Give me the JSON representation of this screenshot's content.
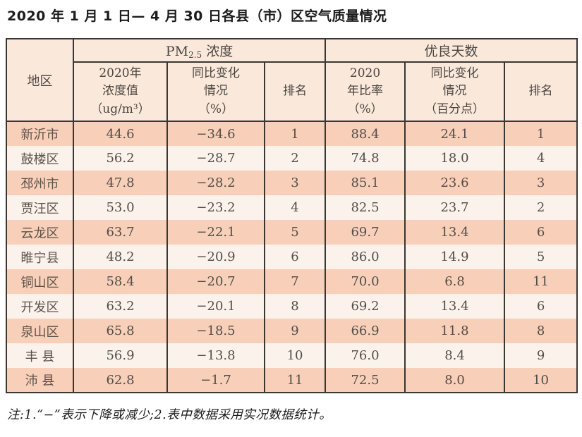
{
  "page": {
    "title": "2020 年 1 月 1 日— 4 月 30 日各县（市）区空气质量情况",
    "footnote": "注:1.“−”表示下降或减少;2.表中数据采用实况数据统计。"
  },
  "colors": {
    "header_bg": "#fae8db",
    "row_odd_bg": "#f8cfb8",
    "row_even_bg": "#fcf2ec",
    "border": "#3a3733"
  },
  "table": {
    "header": {
      "region": "地区",
      "group_pm25": {
        "prefix": "PM",
        "sub": "2.5",
        "suffix": " 浓度"
      },
      "group_good_days": "优良天数",
      "pm25_value": "2020年\n浓度值\n（ug/m³）",
      "pm25_change": "同比变化\n情况\n（%）",
      "pm25_rank": "排名",
      "good_ratio": "2020\n年比率\n（%）",
      "good_change": "同比变化\n情况\n（百分点）",
      "good_rank": "排名"
    },
    "rows": [
      {
        "region": "新沂市",
        "pm25_value": "44.6",
        "pm25_change": "−34.6",
        "pm25_rank": "1",
        "good_ratio": "88.4",
        "good_change": "24.1",
        "good_rank": "1"
      },
      {
        "region": "鼓楼区",
        "pm25_value": "56.2",
        "pm25_change": "−28.7",
        "pm25_rank": "2",
        "good_ratio": "74.8",
        "good_change": "18.0",
        "good_rank": "4"
      },
      {
        "region": "邳州市",
        "pm25_value": "47.8",
        "pm25_change": "−28.2",
        "pm25_rank": "3",
        "good_ratio": "85.1",
        "good_change": "23.6",
        "good_rank": "3"
      },
      {
        "region": "贾汪区",
        "pm25_value": "53.0",
        "pm25_change": "−23.2",
        "pm25_rank": "4",
        "good_ratio": "82.5",
        "good_change": "23.7",
        "good_rank": "2"
      },
      {
        "region": "云龙区",
        "pm25_value": "63.7",
        "pm25_change": "−22.1",
        "pm25_rank": "5",
        "good_ratio": "69.7",
        "good_change": "13.4",
        "good_rank": "6"
      },
      {
        "region": "睢宁县",
        "pm25_value": "48.2",
        "pm25_change": "−20.9",
        "pm25_rank": "6",
        "good_ratio": "86.0",
        "good_change": "14.9",
        "good_rank": "5"
      },
      {
        "region": "铜山区",
        "pm25_value": "58.4",
        "pm25_change": "−20.7",
        "pm25_rank": "7",
        "good_ratio": "70.0",
        "good_change": "6.8",
        "good_rank": "11"
      },
      {
        "region": "开发区",
        "pm25_value": "63.2",
        "pm25_change": "−20.1",
        "pm25_rank": "8",
        "good_ratio": "69.2",
        "good_change": "13.4",
        "good_rank": "6"
      },
      {
        "region": "泉山区",
        "pm25_value": "65.8",
        "pm25_change": "−18.5",
        "pm25_rank": "9",
        "good_ratio": "66.9",
        "good_change": "11.8",
        "good_rank": "8"
      },
      {
        "region": "丰 县",
        "pm25_value": "56.9",
        "pm25_change": "−13.8",
        "pm25_rank": "10",
        "good_ratio": "76.0",
        "good_change": "8.4",
        "good_rank": "9"
      },
      {
        "region": "沛 县",
        "pm25_value": "62.8",
        "pm25_change": "−1.7",
        "pm25_rank": "11",
        "good_ratio": "72.5",
        "good_change": "8.0",
        "good_rank": "10"
      }
    ]
  }
}
